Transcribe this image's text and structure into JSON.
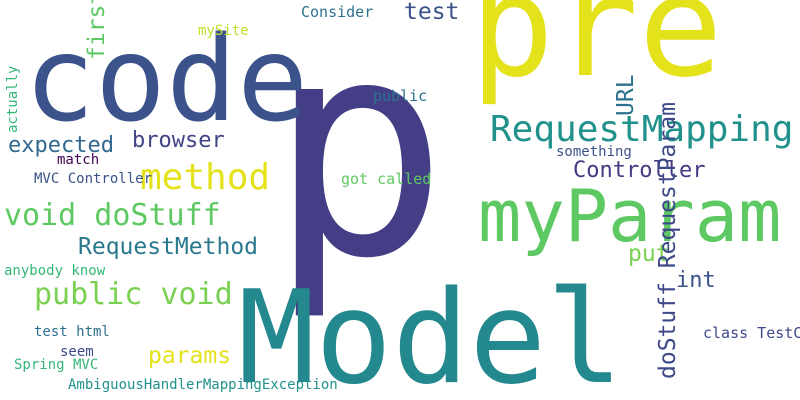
{
  "words": [
    {
      "text": "p",
      "color": "#433e85"
    },
    {
      "text": "pre",
      "color": "#e4e21b"
    },
    {
      "text": "code",
      "color": "#3b528b"
    },
    {
      "text": "Model",
      "color": "#23898e"
    },
    {
      "text": "myParam",
      "color": "#5ec962"
    },
    {
      "text": "RequestMapping",
      "color": "#21918c"
    },
    {
      "text": "method",
      "color": "#e4e21b"
    },
    {
      "text": "void doStuff",
      "color": "#5ec962"
    },
    {
      "text": "public void",
      "color": "#7ad151"
    },
    {
      "text": "Controller",
      "color": "#443983"
    },
    {
      "text": "RequestMethod",
      "color": "#2a788e"
    },
    {
      "text": "browser",
      "color": "#414487"
    },
    {
      "text": "expected",
      "color": "#31688e"
    },
    {
      "text": "test",
      "color": "#3b528b"
    },
    {
      "text": "put",
      "color": "#7ad151"
    },
    {
      "text": "int",
      "color": "#3b528b"
    },
    {
      "text": "params",
      "color": "#e4e21b"
    },
    {
      "text": "Consider",
      "color": "#2c728e"
    },
    {
      "text": "mySite",
      "color": "#bddf26"
    },
    {
      "text": "public",
      "color": "#2c728e"
    },
    {
      "text": "something",
      "color": "#3b528b"
    },
    {
      "text": "match",
      "color": "#440154"
    },
    {
      "text": "MVC Controller",
      "color": "#3b528b"
    },
    {
      "text": "got called",
      "color": "#5ec962"
    },
    {
      "text": "anybody know",
      "color": "#35b779"
    },
    {
      "text": "test html",
      "color": "#2c728e"
    },
    {
      "text": "seem",
      "color": "#3e4989"
    },
    {
      "text": "Spring MVC",
      "color": "#35b779"
    },
    {
      "text": "AmbiguousHandlerMappingException",
      "color": "#21918c"
    },
    {
      "text": "class TestController",
      "color": "#3e4989"
    },
    {
      "text": "first",
      "color": "#5ec962"
    },
    {
      "text": "URL",
      "color": "#2c728e"
    },
    {
      "text": "doStuff RequestParam",
      "color": "#3e4989"
    },
    {
      "text": "actually",
      "color": "#35b779"
    }
  ]
}
